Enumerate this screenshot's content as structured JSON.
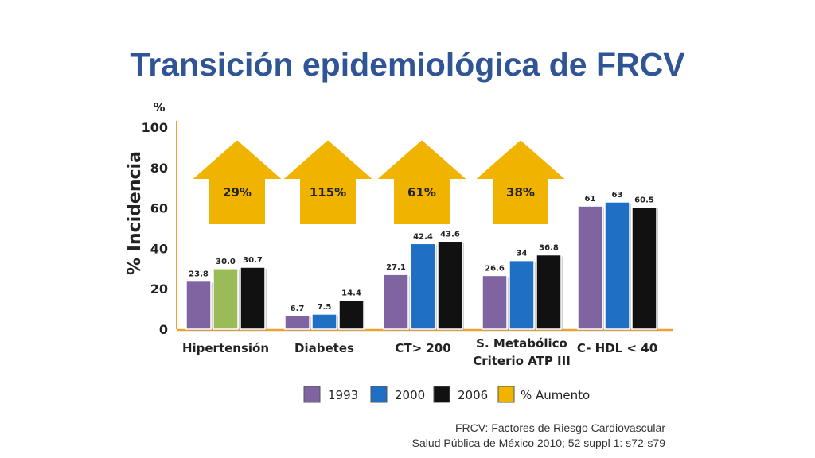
{
  "title": "Transición epidemiológica de FRCV",
  "chart_data": {
    "type": "bar",
    "ylabel": "% Incidencia",
    "yunit": "%",
    "ylim": [
      0,
      100
    ],
    "yticks": [
      "0",
      "20",
      "40",
      "60",
      "80",
      "100"
    ],
    "categories": [
      "Hipertensión",
      "Diabetes",
      "CT> 200",
      "S. Metabólico Criterio ATP III",
      "C- HDL < 40"
    ],
    "category_lines": [
      [
        "Hipertensión"
      ],
      [
        "Diabetes"
      ],
      [
        "CT> 200"
      ],
      [
        "S. Metabólico",
        "Criterio ATP III"
      ],
      [
        "C- HDL < 40"
      ]
    ],
    "series": [
      {
        "name": "1993",
        "values": [
          23.8,
          6.7,
          27.1,
          26.6,
          61
        ],
        "labels": [
          "23.8",
          "6.7",
          "27.1",
          "26.6",
          "61"
        ],
        "color": "#8064a2"
      },
      {
        "name": "2000",
        "values": [
          30.0,
          7.5,
          42.4,
          34,
          63
        ],
        "labels": [
          "30.0",
          "7.5",
          "42.4",
          "34",
          "63"
        ],
        "color": "#1f6fc5"
      },
      {
        "name": "2006",
        "values": [
          30.7,
          14.4,
          43.6,
          36.8,
          60.5
        ],
        "labels": [
          "30.7",
          "14.4",
          "43.6",
          "36.8",
          "60.5"
        ],
        "color": "#111111"
      }
    ],
    "special_colors": [
      {
        "series": 1,
        "category": 0,
        "color": "#9bbb59"
      }
    ],
    "increase_label": "% Aumento",
    "increase_color": "#f0b400",
    "increases": [
      "29%",
      "115%",
      "61%",
      "38%"
    ],
    "legend_position": "bottom"
  },
  "footnote": {
    "line1": "FRCV: Factores de Riesgo Cardiovascular",
    "line2": "Salud Pública de México 2010; 52 suppl 1: s72-s79"
  }
}
